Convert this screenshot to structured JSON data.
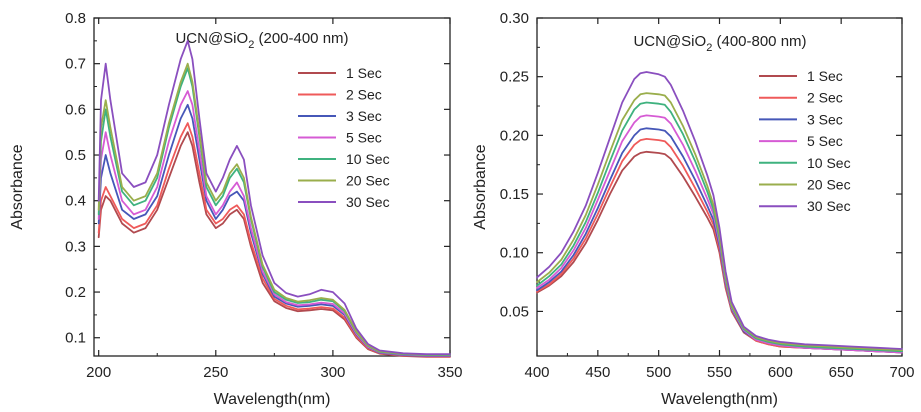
{
  "chart_data": [
    {
      "type": "line",
      "title": "UCN@SiO",
      "title_subscript": "2",
      "title_suffix": " (200-400 nm)",
      "xlabel": "Wavelength(nm)",
      "ylabel": "Absorbance",
      "xlim": [
        198,
        350
      ],
      "ylim": [
        0.06,
        0.8
      ],
      "xticks": [
        200,
        250,
        300,
        350
      ],
      "yticks": [
        0.1,
        0.2,
        0.3,
        0.4,
        0.5,
        0.6,
        0.7,
        0.8
      ],
      "ytick_labels": [
        "0.1",
        "0.2",
        "0.3",
        "0.4",
        "0.5",
        "0.6",
        "0.7",
        "0.8"
      ],
      "legend_position": "right",
      "x": [
        200,
        201,
        203,
        205,
        210,
        215,
        220,
        225,
        230,
        235,
        238,
        240,
        243,
        246,
        250,
        253,
        256,
        259,
        262,
        265,
        270,
        275,
        280,
        285,
        290,
        295,
        300,
        305,
        310,
        315,
        320,
        330,
        340,
        350
      ],
      "series": [
        {
          "name": "1 Sec",
          "color": "#b14a4f",
          "values": [
            0.32,
            0.38,
            0.41,
            0.4,
            0.35,
            0.33,
            0.34,
            0.38,
            0.45,
            0.52,
            0.55,
            0.52,
            0.44,
            0.37,
            0.34,
            0.35,
            0.37,
            0.38,
            0.36,
            0.3,
            0.22,
            0.18,
            0.165,
            0.158,
            0.16,
            0.163,
            0.16,
            0.14,
            0.1,
            0.075,
            0.065,
            0.06,
            0.058,
            0.058
          ]
        },
        {
          "name": "2 Sec",
          "color": "#ef5a5a",
          "values": [
            0.33,
            0.4,
            0.43,
            0.41,
            0.36,
            0.34,
            0.35,
            0.39,
            0.47,
            0.54,
            0.57,
            0.54,
            0.46,
            0.38,
            0.35,
            0.36,
            0.38,
            0.39,
            0.37,
            0.31,
            0.23,
            0.185,
            0.17,
            0.162,
            0.164,
            0.167,
            0.164,
            0.144,
            0.103,
            0.077,
            0.066,
            0.061,
            0.059,
            0.059
          ]
        },
        {
          "name": "3 Sec",
          "color": "#4657b8",
          "values": [
            0.35,
            0.45,
            0.5,
            0.46,
            0.38,
            0.36,
            0.37,
            0.41,
            0.5,
            0.58,
            0.61,
            0.58,
            0.49,
            0.4,
            0.36,
            0.38,
            0.41,
            0.42,
            0.4,
            0.33,
            0.24,
            0.19,
            0.175,
            0.168,
            0.17,
            0.173,
            0.17,
            0.15,
            0.107,
            0.079,
            0.067,
            0.062,
            0.06,
            0.06
          ]
        },
        {
          "name": "5 Sec",
          "color": "#d65bd4",
          "values": [
            0.36,
            0.49,
            0.55,
            0.5,
            0.4,
            0.37,
            0.38,
            0.43,
            0.53,
            0.61,
            0.64,
            0.61,
            0.51,
            0.41,
            0.37,
            0.39,
            0.42,
            0.44,
            0.41,
            0.34,
            0.245,
            0.195,
            0.178,
            0.171,
            0.173,
            0.177,
            0.174,
            0.153,
            0.109,
            0.08,
            0.068,
            0.063,
            0.061,
            0.061
          ]
        },
        {
          "name": "10 Sec",
          "color": "#3fb27f",
          "values": [
            0.37,
            0.53,
            0.6,
            0.54,
            0.42,
            0.39,
            0.4,
            0.45,
            0.56,
            0.65,
            0.69,
            0.65,
            0.54,
            0.43,
            0.39,
            0.41,
            0.45,
            0.47,
            0.44,
            0.36,
            0.255,
            0.2,
            0.183,
            0.176,
            0.178,
            0.183,
            0.18,
            0.158,
            0.112,
            0.082,
            0.069,
            0.064,
            0.062,
            0.062
          ]
        },
        {
          "name": "20 Sec",
          "color": "#9aae4c",
          "values": [
            0.38,
            0.56,
            0.62,
            0.56,
            0.43,
            0.4,
            0.41,
            0.46,
            0.57,
            0.66,
            0.7,
            0.66,
            0.55,
            0.44,
            0.4,
            0.42,
            0.46,
            0.48,
            0.45,
            0.365,
            0.26,
            0.205,
            0.187,
            0.179,
            0.182,
            0.187,
            0.183,
            0.161,
            0.114,
            0.083,
            0.07,
            0.065,
            0.063,
            0.063
          ]
        },
        {
          "name": "30 Sec",
          "color": "#8a4fbf",
          "values": [
            0.4,
            0.62,
            0.7,
            0.62,
            0.46,
            0.43,
            0.44,
            0.5,
            0.61,
            0.71,
            0.75,
            0.71,
            0.58,
            0.46,
            0.42,
            0.45,
            0.49,
            0.52,
            0.49,
            0.39,
            0.28,
            0.22,
            0.198,
            0.19,
            0.195,
            0.205,
            0.2,
            0.175,
            0.12,
            0.086,
            0.072,
            0.066,
            0.064,
            0.064
          ]
        }
      ]
    },
    {
      "type": "line",
      "title": "UCN@SiO",
      "title_subscript": "2",
      "title_suffix": " (400-800 nm)",
      "xlabel": "Wavelength(nm)",
      "ylabel": "Absorbance",
      "xlim": [
        400,
        700
      ],
      "ylim": [
        0.012,
        0.3
      ],
      "xticks": [
        400,
        450,
        500,
        550,
        600,
        650,
        700
      ],
      "yticks": [
        0.05,
        0.1,
        0.15,
        0.2,
        0.25,
        0.3
      ],
      "ytick_labels": [
        "0.05",
        "0.10",
        "0.15",
        "0.20",
        "0.25",
        "0.30"
      ],
      "legend_position": "right",
      "x": [
        400,
        410,
        420,
        430,
        440,
        450,
        460,
        470,
        480,
        485,
        490,
        500,
        505,
        510,
        520,
        530,
        540,
        545,
        550,
        555,
        560,
        570,
        580,
        590,
        600,
        620,
        640,
        660,
        680,
        700
      ],
      "series": [
        {
          "name": "1 Sec",
          "color": "#b14a4f",
          "values": [
            0.066,
            0.072,
            0.08,
            0.092,
            0.108,
            0.128,
            0.15,
            0.17,
            0.182,
            0.185,
            0.186,
            0.185,
            0.184,
            0.18,
            0.165,
            0.148,
            0.13,
            0.12,
            0.1,
            0.07,
            0.05,
            0.032,
            0.025,
            0.022,
            0.02,
            0.019,
            0.018,
            0.017,
            0.016,
            0.015
          ]
        },
        {
          "name": "2 Sec",
          "color": "#ef5a5a",
          "values": [
            0.067,
            0.073,
            0.082,
            0.095,
            0.112,
            0.133,
            0.156,
            0.178,
            0.192,
            0.196,
            0.197,
            0.196,
            0.195,
            0.19,
            0.174,
            0.155,
            0.135,
            0.124,
            0.103,
            0.072,
            0.051,
            0.033,
            0.025,
            0.022,
            0.02,
            0.019,
            0.018,
            0.017,
            0.016,
            0.015
          ]
        },
        {
          "name": "3 Sec",
          "color": "#4657b8",
          "values": [
            0.068,
            0.075,
            0.084,
            0.098,
            0.116,
            0.138,
            0.162,
            0.185,
            0.2,
            0.205,
            0.206,
            0.205,
            0.204,
            0.199,
            0.182,
            0.162,
            0.14,
            0.128,
            0.106,
            0.074,
            0.052,
            0.033,
            0.026,
            0.023,
            0.021,
            0.019,
            0.018,
            0.017,
            0.016,
            0.015
          ]
        },
        {
          "name": "5 Sec",
          "color": "#d65bd4",
          "values": [
            0.07,
            0.077,
            0.087,
            0.102,
            0.121,
            0.145,
            0.17,
            0.195,
            0.211,
            0.216,
            0.217,
            0.216,
            0.215,
            0.21,
            0.192,
            0.17,
            0.146,
            0.133,
            0.109,
            0.076,
            0.053,
            0.034,
            0.026,
            0.023,
            0.021,
            0.019,
            0.018,
            0.017,
            0.016,
            0.015
          ]
        },
        {
          "name": "10 Sec",
          "color": "#3fb27f",
          "values": [
            0.072,
            0.08,
            0.09,
            0.106,
            0.126,
            0.151,
            0.178,
            0.204,
            0.222,
            0.227,
            0.228,
            0.227,
            0.226,
            0.22,
            0.201,
            0.178,
            0.152,
            0.137,
            0.112,
            0.078,
            0.054,
            0.035,
            0.027,
            0.024,
            0.022,
            0.02,
            0.019,
            0.018,
            0.017,
            0.016
          ]
        },
        {
          "name": "20 Sec",
          "color": "#9aae4c",
          "values": [
            0.075,
            0.083,
            0.094,
            0.111,
            0.132,
            0.158,
            0.186,
            0.213,
            0.23,
            0.235,
            0.236,
            0.235,
            0.234,
            0.228,
            0.208,
            0.184,
            0.157,
            0.141,
            0.115,
            0.08,
            0.055,
            0.036,
            0.028,
            0.025,
            0.023,
            0.021,
            0.02,
            0.019,
            0.018,
            0.017
          ]
        },
        {
          "name": "30 Sec",
          "color": "#8a4fbf",
          "values": [
            0.079,
            0.088,
            0.1,
            0.118,
            0.14,
            0.168,
            0.198,
            0.228,
            0.248,
            0.253,
            0.254,
            0.252,
            0.25,
            0.243,
            0.221,
            0.195,
            0.166,
            0.149,
            0.121,
            0.084,
            0.058,
            0.037,
            0.029,
            0.026,
            0.024,
            0.022,
            0.021,
            0.02,
            0.019,
            0.018
          ]
        }
      ]
    }
  ]
}
